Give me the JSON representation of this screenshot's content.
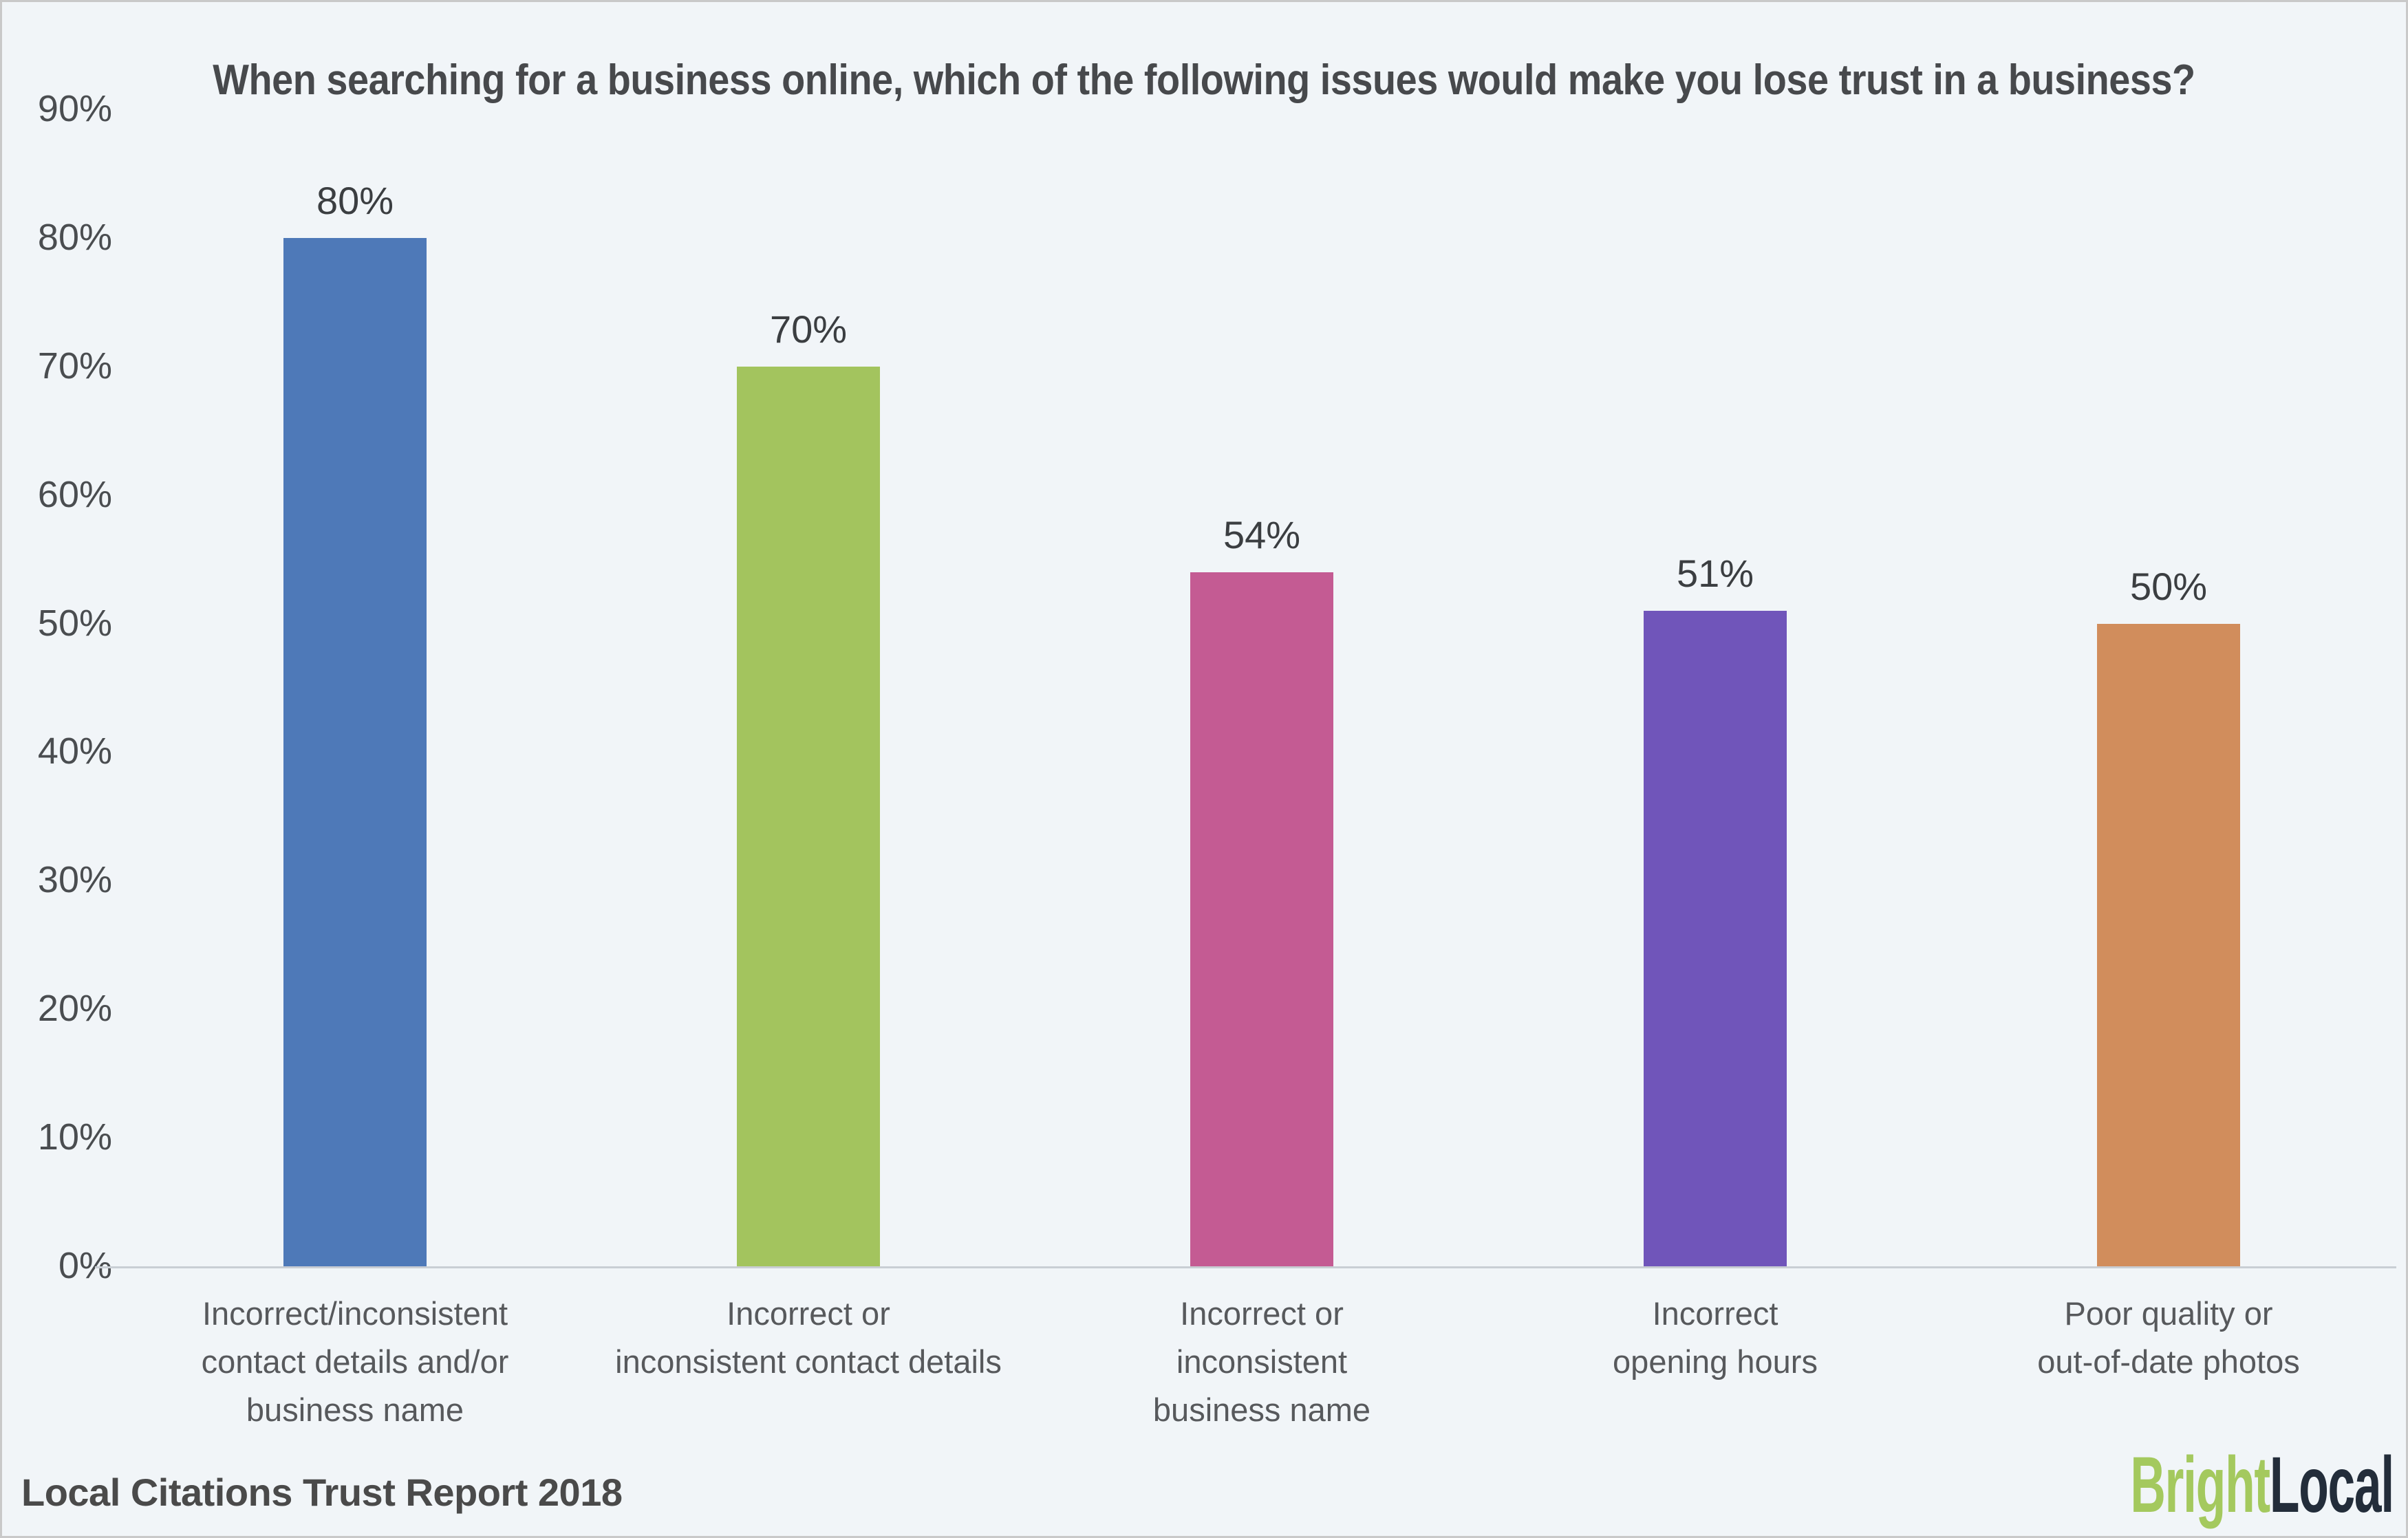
{
  "page": {
    "background_color": "#f1f5f8",
    "frame_border_color": "#c9c9c9"
  },
  "chart_data": {
    "type": "bar",
    "title": "When searching for a business online, which of the following issues would make you lose trust in a business?",
    "categories": [
      [
        "Incorrect/inconsistent",
        "contact details and/or",
        "business name"
      ],
      [
        "Incorrect or",
        "inconsistent contact details"
      ],
      [
        "Incorrect or",
        "inconsistent",
        "business name"
      ],
      [
        "Incorrect",
        "opening hours"
      ],
      [
        "Poor quality or",
        "out-of-date photos"
      ]
    ],
    "values": [
      80,
      70,
      54,
      51,
      50
    ],
    "value_labels": [
      "80%",
      "70%",
      "54%",
      "51%",
      "50%"
    ],
    "bar_colors": [
      "#4e79b8",
      "#a3c45e",
      "#c45b93",
      "#7055ba",
      "#d18d5c"
    ],
    "yticks": [
      "0%",
      "10%",
      "20%",
      "30%",
      "40%",
      "50%",
      "60%",
      "70%",
      "80%",
      "90%"
    ],
    "ylim": [
      0,
      90
    ],
    "xlabel": "",
    "ylabel": "",
    "grid": false,
    "legend": null,
    "axis_line_color": "#c9ced4",
    "title_color": "#47494c",
    "value_label_color": "#3b3e41",
    "ytick_color": "#4a4d50",
    "category_label_color": "#57595c"
  },
  "footer": {
    "source_label": "Local Citations Trust Report 2018"
  },
  "logo": {
    "part1": "Bright",
    "part2": "Local",
    "part1_color": "#a4c95e",
    "part2_color": "#232d3a"
  }
}
